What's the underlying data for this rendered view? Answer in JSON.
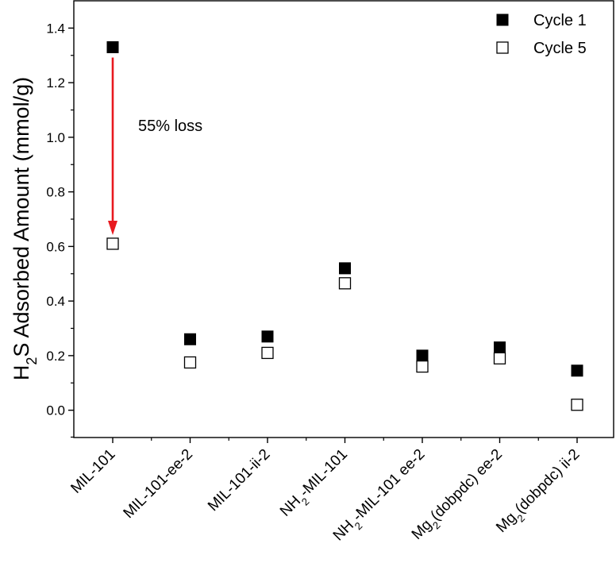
{
  "chart_data": {
    "type": "scatter",
    "title": "",
    "xlabel": "",
    "ylabel": "H2S Adsorbed Amount (mmol/g)",
    "ylabel_parts": {
      "prefix": "H",
      "sub": "2",
      "rest": "S Adsorbed Amount (mmol/g)"
    },
    "ylim": [
      -0.1,
      1.5
    ],
    "yticks": [
      "0.0",
      "0.2",
      "0.4",
      "0.6",
      "0.8",
      "1.0",
      "1.2",
      "1.4"
    ],
    "categories": [
      {
        "label": "MIL-101",
        "parts": [
          [
            "MIL-101",
            false
          ]
        ]
      },
      {
        "label": "MIL-101-ee-2",
        "parts": [
          [
            "MIL-101-ee-2",
            false
          ]
        ]
      },
      {
        "label": "MIL-101-ii-2",
        "parts": [
          [
            "MIL-101-ii-2",
            false
          ]
        ]
      },
      {
        "label": "NH2-MIL-101",
        "parts": [
          [
            "NH",
            false
          ],
          [
            "2",
            true
          ],
          [
            "-MIL-101",
            false
          ]
        ]
      },
      {
        "label": "NH2-MIL-101 ee-2",
        "parts": [
          [
            "NH",
            false
          ],
          [
            "2",
            true
          ],
          [
            "-MIL-101 ee-2",
            false
          ]
        ]
      },
      {
        "label": "Mg2(dobpdc) ee-2",
        "parts": [
          [
            "Mg",
            false
          ],
          [
            "2",
            true
          ],
          [
            "(dobpdc) ee-2",
            false
          ]
        ]
      },
      {
        "label": "Mg2(dobpdc) ii-2",
        "parts": [
          [
            "Mg",
            false
          ],
          [
            "2",
            true
          ],
          [
            "(dobpdc) ii-2",
            false
          ]
        ]
      }
    ],
    "series": [
      {
        "name": "Cycle 1",
        "marker": "filled-square",
        "values": [
          1.33,
          0.26,
          0.27,
          0.52,
          0.2,
          0.23,
          0.145
        ]
      },
      {
        "name": "Cycle 5",
        "marker": "open-square",
        "values": [
          0.61,
          0.175,
          0.21,
          0.465,
          0.16,
          0.19,
          0.02
        ]
      }
    ],
    "legend_position": "top-right",
    "annotations": [
      {
        "text": "55% loss",
        "arrow_from": 1.33,
        "arrow_to": 0.61,
        "category_index": 0,
        "color": "#e8191f"
      }
    ],
    "grid": false
  }
}
